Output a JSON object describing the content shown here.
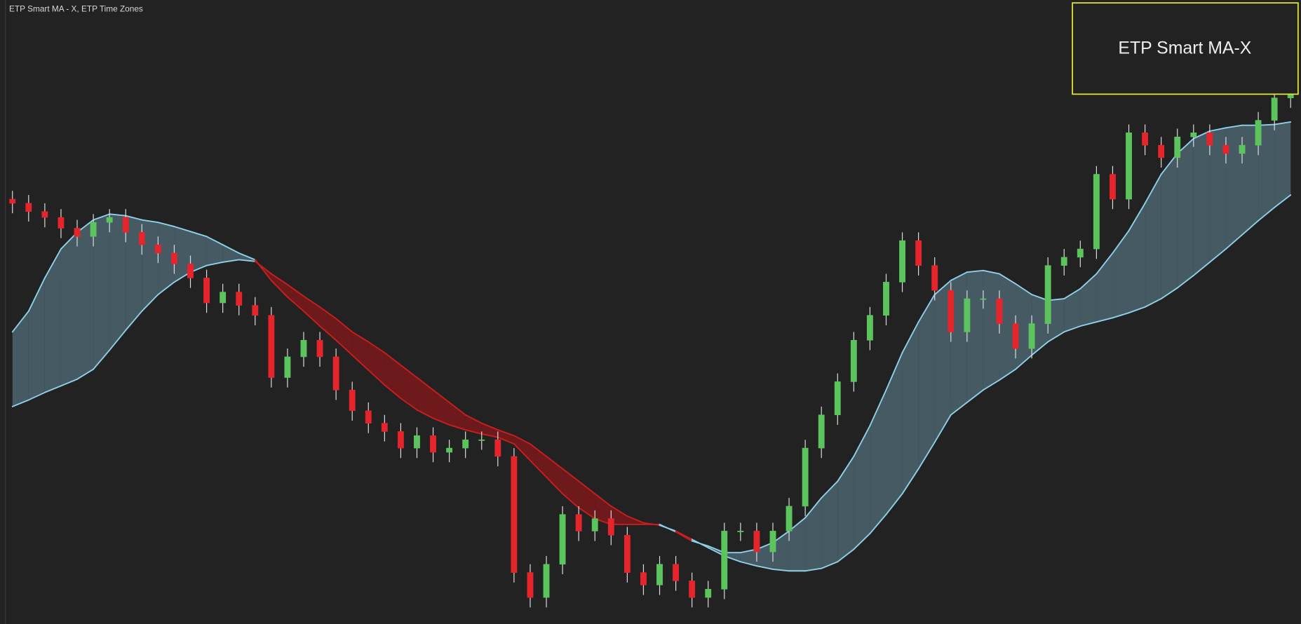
{
  "header": {
    "title": "ETP Smart MA - X, ETP Time Zones"
  },
  "chart_data": {
    "type": "candlestick",
    "annotation": "ETP Smart MA-X",
    "ylim": [
      48,
      800
    ],
    "up_color": "#5cc45c",
    "down_color": "#e5252b",
    "band_up_color": "#465a64",
    "band_down_color": "#6e1a1c",
    "line_up_color": "#8fd0ea",
    "line_down_color": "#c81e1e",
    "open": [
      560,
      555,
      545,
      538,
      525,
      515,
      532,
      538,
      520,
      505,
      495,
      482,
      465,
      435,
      448,
      432,
      420,
      345,
      370,
      390,
      370,
      330,
      305,
      290,
      280,
      260,
      275,
      255,
      260,
      270,
      270,
      250,
      110,
      80,
      120,
      180,
      160,
      175,
      155,
      110,
      95,
      120,
      100,
      80,
      90,
      160,
      160,
      135,
      160,
      190,
      260,
      300,
      340,
      390,
      420,
      460,
      510,
      480,
      450,
      400,
      440,
      440,
      410,
      380,
      410,
      480,
      490,
      500,
      590,
      560,
      640,
      625,
      610,
      635,
      640,
      625,
      615,
      625,
      655,
      682
    ],
    "high": [
      570,
      565,
      555,
      548,
      535,
      542,
      548,
      548,
      530,
      515,
      505,
      492,
      475,
      458,
      458,
      442,
      430,
      380,
      400,
      400,
      380,
      340,
      315,
      300,
      290,
      285,
      285,
      270,
      280,
      280,
      280,
      260,
      120,
      130,
      190,
      190,
      185,
      185,
      165,
      120,
      130,
      130,
      110,
      100,
      170,
      170,
      170,
      170,
      200,
      270,
      310,
      350,
      400,
      430,
      470,
      520,
      520,
      490,
      460,
      450,
      450,
      450,
      420,
      420,
      490,
      500,
      510,
      600,
      600,
      650,
      650,
      635,
      645,
      650,
      650,
      635,
      635,
      665,
      692,
      698
    ],
    "low": [
      543,
      533,
      526,
      513,
      503,
      503,
      520,
      508,
      493,
      483,
      470,
      453,
      423,
      423,
      420,
      408,
      333,
      333,
      358,
      358,
      318,
      293,
      278,
      268,
      248,
      248,
      243,
      243,
      248,
      258,
      238,
      98,
      68,
      68,
      108,
      148,
      148,
      143,
      98,
      83,
      83,
      88,
      68,
      68,
      78,
      148,
      123,
      123,
      148,
      178,
      248,
      288,
      328,
      378,
      408,
      448,
      468,
      438,
      388,
      388,
      428,
      398,
      368,
      368,
      398,
      468,
      478,
      488,
      548,
      548,
      613,
      598,
      598,
      623,
      613,
      603,
      603,
      613,
      643,
      670
    ],
    "close": [
      555,
      545,
      538,
      525,
      515,
      532,
      538,
      520,
      505,
      495,
      482,
      465,
      435,
      448,
      432,
      420,
      345,
      370,
      390,
      370,
      330,
      305,
      290,
      280,
      260,
      275,
      255,
      260,
      270,
      270,
      250,
      110,
      80,
      120,
      180,
      160,
      175,
      155,
      110,
      95,
      120,
      100,
      80,
      90,
      160,
      160,
      135,
      160,
      190,
      260,
      300,
      340,
      390,
      420,
      460,
      510,
      480,
      450,
      400,
      440,
      440,
      410,
      380,
      410,
      480,
      490,
      500,
      590,
      560,
      640,
      625,
      610,
      635,
      640,
      625,
      615,
      625,
      655,
      682,
      688
    ],
    "fast_ma": [
      400,
      425,
      465,
      500,
      520,
      535,
      542,
      540,
      535,
      532,
      527,
      521,
      515,
      505,
      495,
      487,
      462,
      442,
      425,
      407,
      390,
      372,
      354,
      336,
      320,
      306,
      296,
      288,
      282,
      277,
      273,
      265,
      245,
      225,
      205,
      188,
      175,
      168,
      168,
      168,
      168,
      159,
      148,
      142,
      134,
      134,
      138,
      146,
      160,
      176,
      200,
      220,
      250,
      287,
      330,
      375,
      412,
      445,
      462,
      472,
      474,
      470,
      458,
      445,
      438,
      440,
      452,
      470,
      495,
      522,
      555,
      590,
      615,
      633,
      642,
      646,
      649,
      649,
      650,
      653
    ],
    "slow_ma": [
      310,
      318,
      327,
      335,
      343,
      355,
      378,
      402,
      425,
      445,
      460,
      472,
      480,
      484,
      487,
      485,
      470,
      457,
      443,
      430,
      416,
      400,
      388,
      375,
      360,
      345,
      330,
      315,
      300,
      290,
      282,
      275,
      265,
      250,
      235,
      220,
      205,
      190,
      178,
      170,
      167,
      160,
      150,
      140,
      130,
      123,
      118,
      114,
      112,
      112,
      115,
      123,
      138,
      157,
      180,
      205,
      235,
      267,
      300,
      315,
      330,
      342,
      355,
      372,
      388,
      400,
      407,
      412,
      417,
      423,
      430,
      440,
      453,
      468,
      484,
      500,
      517,
      534,
      550,
      565
    ]
  }
}
